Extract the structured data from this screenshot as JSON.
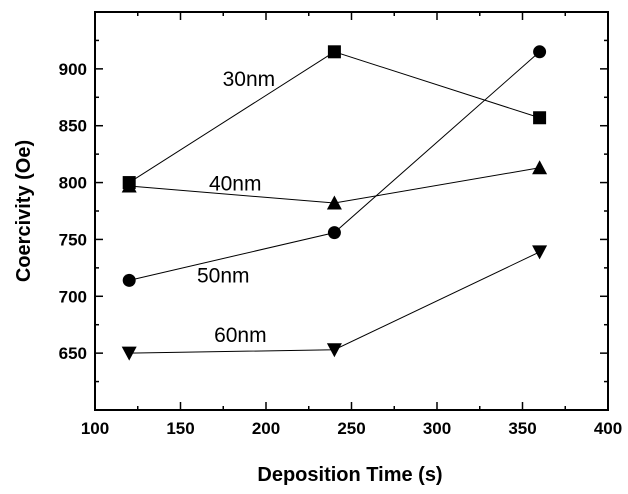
{
  "chart_data": {
    "type": "line",
    "xlabel": "Deposition Time (s)",
    "ylabel": "Coercivity (Oe)",
    "xlim": [
      100,
      400
    ],
    "ylim": [
      600,
      950
    ],
    "xticks": [
      100,
      150,
      200,
      250,
      300,
      350,
      400
    ],
    "yticks": [
      650,
      700,
      750,
      800,
      850,
      900
    ],
    "grid": false,
    "series": [
      {
        "name": "30nm",
        "marker": "square",
        "x": [
          120,
          240,
          360
        ],
        "y": [
          800,
          915,
          857
        ]
      },
      {
        "name": "40nm",
        "marker": "triangle-up",
        "x": [
          120,
          240,
          360
        ],
        "y": [
          797,
          782,
          813
        ]
      },
      {
        "name": "50nm",
        "marker": "circle",
        "x": [
          120,
          240,
          360
        ],
        "y": [
          714,
          756,
          915
        ]
      },
      {
        "name": "60nm",
        "marker": "triangle-down",
        "x": [
          120,
          240,
          360
        ],
        "y": [
          650,
          653,
          739
        ]
      }
    ],
    "annotations": [
      {
        "text": "30nm",
        "x": 190,
        "y": 885
      },
      {
        "text": "40nm",
        "x": 182,
        "y": 793
      },
      {
        "text": "50nm",
        "x": 175,
        "y": 712
      },
      {
        "text": "60nm",
        "x": 185,
        "y": 660
      }
    ]
  }
}
